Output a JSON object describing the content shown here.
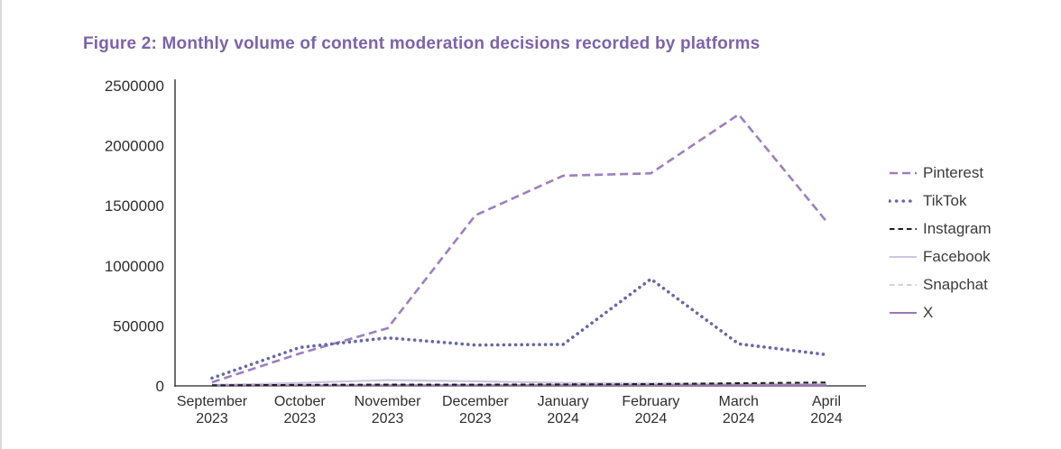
{
  "figure": {
    "title": "Figure 2: Monthly volume of content moderation decisions recorded by platforms",
    "title_color": "#7c63ab"
  },
  "chart_data": {
    "type": "line",
    "title": "Figure 2: Monthly volume of content moderation decisions recorded by platforms",
    "xlabel": "",
    "ylabel": "",
    "ylim": [
      0,
      2500000
    ],
    "yticks": [
      0,
      500000,
      1000000,
      1500000,
      2000000,
      2500000
    ],
    "grid": false,
    "legend_position": "right",
    "axis_color": "#4a4a4a",
    "tick_label_color": "#2e2e2e",
    "categories": [
      [
        "September",
        "2023"
      ],
      [
        "October",
        "2023"
      ],
      [
        "November",
        "2023"
      ],
      [
        "December",
        "2023"
      ],
      [
        "January",
        "2024"
      ],
      [
        "February",
        "2024"
      ],
      [
        "March",
        "2024"
      ],
      [
        "April",
        "2024"
      ]
    ],
    "series": [
      {
        "name": "Pinterest",
        "color": "#9d7fc0",
        "style": "dashed",
        "values": [
          30000,
          270000,
          480000,
          1420000,
          1750000,
          1770000,
          2260000,
          1370000
        ]
      },
      {
        "name": "TikTok",
        "color": "#6867a8",
        "style": "dotted",
        "values": [
          65000,
          320000,
          400000,
          340000,
          345000,
          890000,
          350000,
          260000
        ]
      },
      {
        "name": "Instagram",
        "color": "#1f1f1f",
        "style": "dashed-small",
        "values": [
          5000,
          8000,
          10000,
          10000,
          12000,
          15000,
          22000,
          28000
        ]
      },
      {
        "name": "Facebook",
        "color": "#cfc6e2",
        "style": "solid",
        "values": [
          8000,
          25000,
          48000,
          38000,
          25000,
          20000,
          17000,
          15000
        ]
      },
      {
        "name": "Snapchat",
        "color": "#d6cde8",
        "style": "dashed-small",
        "values": [
          10000,
          12000,
          14000,
          12000,
          12000,
          14000,
          14000,
          14000
        ]
      },
      {
        "name": "X",
        "color": "#9a7ab2",
        "style": "solid",
        "values": [
          3000,
          4000,
          5000,
          5000,
          6000,
          6000,
          6000,
          6000
        ]
      }
    ]
  }
}
